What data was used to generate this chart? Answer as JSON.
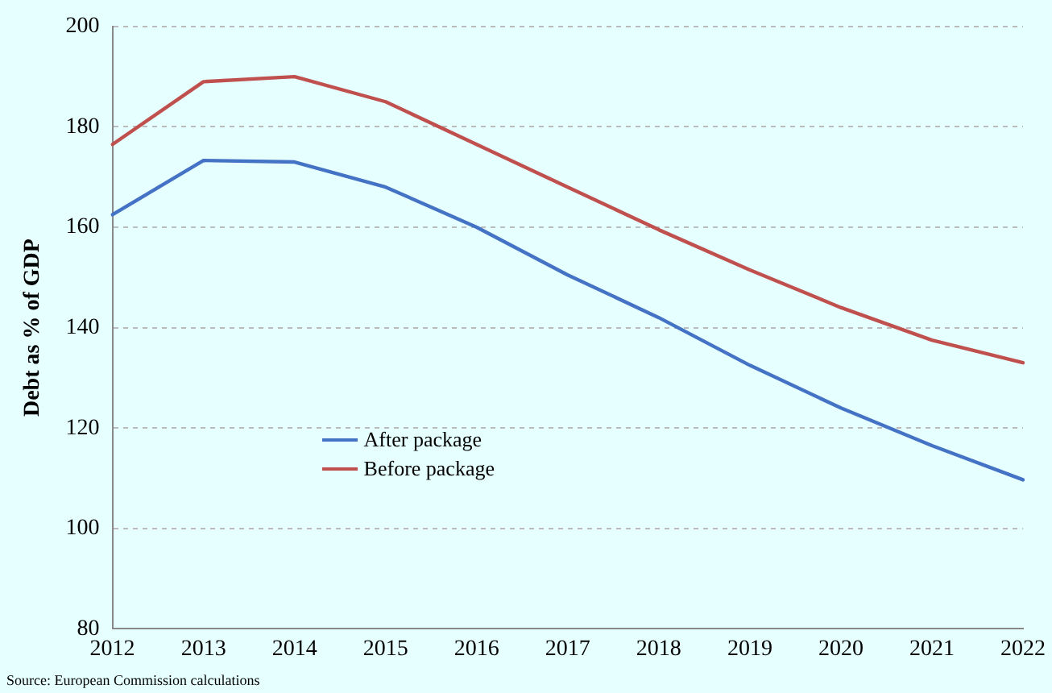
{
  "chart_data": {
    "type": "line",
    "ylabel": "Debt as % of GDP",
    "categories": [
      "2012",
      "2013",
      "2014",
      "2015",
      "2016",
      "2017",
      "2018",
      "2019",
      "2020",
      "2021",
      "2022"
    ],
    "series": [
      {
        "name": "After package",
        "color": "#4472c4",
        "values": [
          162.5,
          173.3,
          173,
          168,
          160,
          150.5,
          142,
          132.5,
          124,
          116.5,
          109.7
        ]
      },
      {
        "name": "Before package",
        "color": "#c0504d",
        "values": [
          176.5,
          189,
          190,
          185,
          176.5,
          168,
          159.5,
          151.5,
          144,
          137.5,
          133
        ]
      }
    ],
    "ylim": [
      80,
      200
    ],
    "yticks": [
      80,
      100,
      120,
      140,
      160,
      180,
      200
    ],
    "grid": "y",
    "legend": "bottom left",
    "marker": "none",
    "line_style": "solid",
    "annotations": [
      "Source: European Commission calculations"
    ]
  }
}
